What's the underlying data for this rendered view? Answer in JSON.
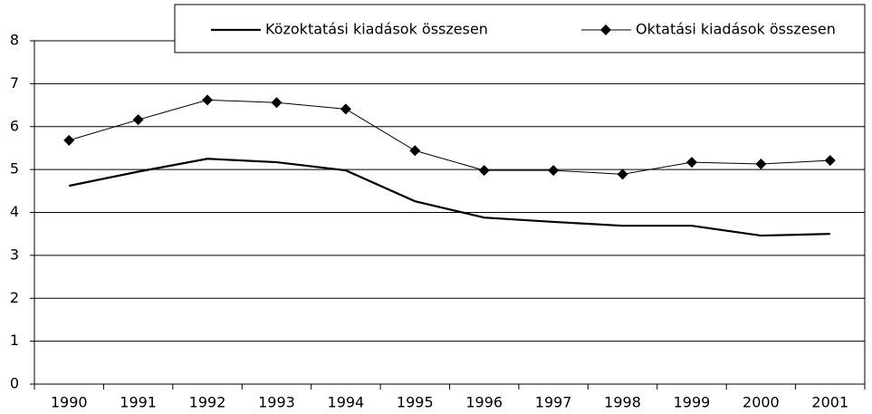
{
  "chart_data": {
    "type": "line",
    "categories": [
      "1990",
      "1991",
      "1992",
      "1993",
      "1994",
      "1995",
      "1996",
      "1997",
      "1998",
      "1999",
      "2000",
      "2001"
    ],
    "series": [
      {
        "name": "Közoktatási kiadások összesen",
        "color": "#000000",
        "marker": "none",
        "values": [
          4.62,
          4.95,
          5.25,
          5.17,
          4.98,
          4.26,
          3.88,
          3.78,
          3.69,
          3.69,
          3.46,
          3.5
        ]
      },
      {
        "name": "Oktatási kiadások összesen",
        "color": "#000000",
        "marker": "diamond",
        "values": [
          5.68,
          6.16,
          6.62,
          6.56,
          6.41,
          5.44,
          4.98,
          4.98,
          4.89,
          5.17,
          5.13,
          5.21
        ]
      }
    ],
    "ylim": [
      0,
      8
    ],
    "yticks": [
      0,
      1,
      2,
      3,
      4,
      5,
      6,
      7,
      8
    ],
    "grid": true,
    "legend": "top"
  }
}
